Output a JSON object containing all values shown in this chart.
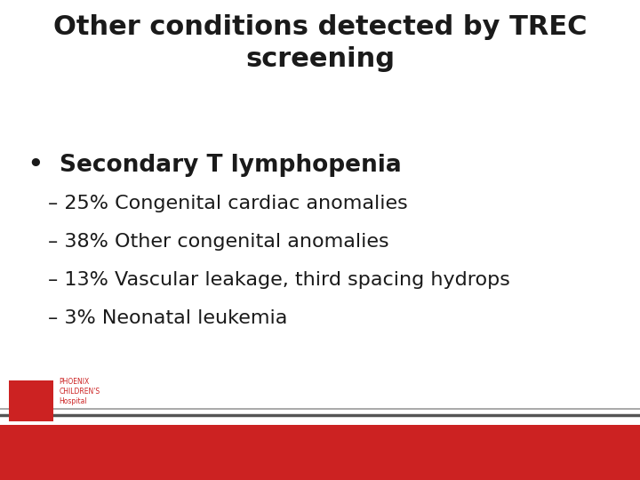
{
  "title_line1": "Other conditions detected by TREC",
  "title_line2": "screening",
  "bullet": "•  Secondary T lymphopenia",
  "sub_items": [
    "– 25% Congenital cardiac anomalies",
    "– 38% Other congenital anomalies",
    "– 13% Vascular leakage, third spacing hydrops",
    "– 3% Neonatal leukemia"
  ],
  "bg_color": "#ffffff",
  "title_color": "#1a1a1a",
  "bullet_color": "#1a1a1a",
  "sub_color": "#1a1a1a",
  "footer_bar_color": "#cc2222",
  "footer_line_color": "#999999",
  "logo_box_color": "#cc2222",
  "title_fontsize": 22,
  "bullet_fontsize": 19,
  "sub_fontsize": 16,
  "logo_text_color": "#cc2222",
  "logo_text_fontsize": 5.5
}
